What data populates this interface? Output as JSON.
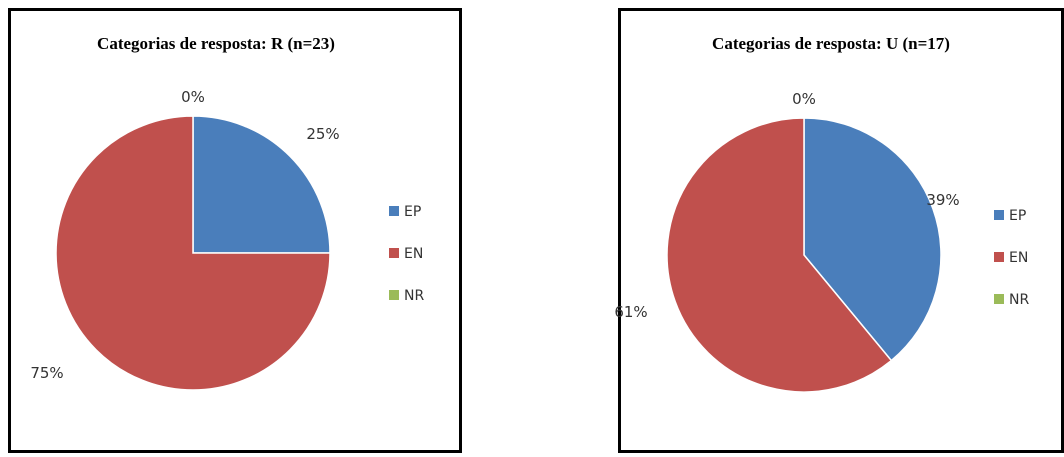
{
  "chart_data": [
    {
      "type": "pie",
      "title": "Categorias de resposta: R (n=23)",
      "categories": [
        "EP",
        "EN",
        "NR"
      ],
      "values": [
        25,
        75,
        0
      ],
      "labels": [
        "25%",
        "75%",
        "0%"
      ],
      "colors": [
        "#4a7ebb",
        "#c0504d",
        "#9bbb59"
      ],
      "legend": "right"
    },
    {
      "type": "pie",
      "title": "Categorias de resposta: U (n=17)",
      "categories": [
        "EP",
        "EN",
        "NR"
      ],
      "values": [
        39,
        61,
        0
      ],
      "labels": [
        "39%",
        "61%",
        "0%"
      ],
      "colors": [
        "#4a7ebb",
        "#c0504d",
        "#9bbb59"
      ],
      "legend": "right"
    }
  ]
}
